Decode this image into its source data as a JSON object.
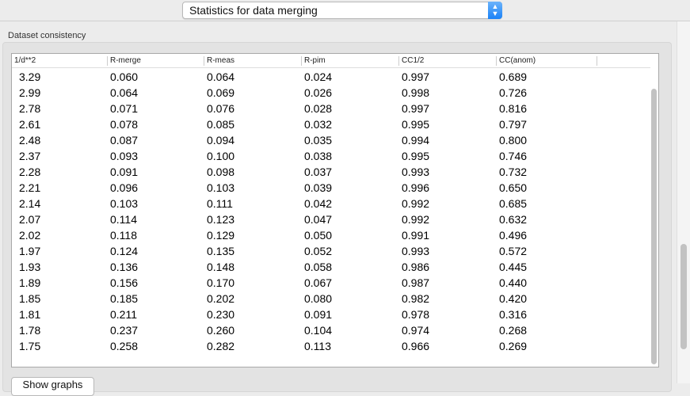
{
  "selector": {
    "value": "Statistics for data merging"
  },
  "group": {
    "label": "Dataset consistency"
  },
  "table": {
    "columns": [
      "1/d**2",
      "R-merge",
      "R-meas",
      "R-pim",
      "CC1/2",
      "CC(anom)"
    ],
    "rows": [
      [
        "3.29",
        "0.060",
        "0.064",
        "0.024",
        "0.997",
        "0.689"
      ],
      [
        "2.99",
        "0.064",
        "0.069",
        "0.026",
        "0.998",
        "0.726"
      ],
      [
        "2.78",
        "0.071",
        "0.076",
        "0.028",
        "0.997",
        "0.816"
      ],
      [
        "2.61",
        "0.078",
        "0.085",
        "0.032",
        "0.995",
        "0.797"
      ],
      [
        "2.48",
        "0.087",
        "0.094",
        "0.035",
        "0.994",
        "0.800"
      ],
      [
        "2.37",
        "0.093",
        "0.100",
        "0.038",
        "0.995",
        "0.746"
      ],
      [
        "2.28",
        "0.091",
        "0.098",
        "0.037",
        "0.993",
        "0.732"
      ],
      [
        "2.21",
        "0.096",
        "0.103",
        "0.039",
        "0.996",
        "0.650"
      ],
      [
        "2.14",
        "0.103",
        "0.111",
        "0.042",
        "0.992",
        "0.685"
      ],
      [
        "2.07",
        "0.114",
        "0.123",
        "0.047",
        "0.992",
        "0.632"
      ],
      [
        "2.02",
        "0.118",
        "0.129",
        "0.050",
        "0.991",
        "0.496"
      ],
      [
        "1.97",
        "0.124",
        "0.135",
        "0.052",
        "0.993",
        "0.572"
      ],
      [
        "1.93",
        "0.136",
        "0.148",
        "0.058",
        "0.986",
        "0.445"
      ],
      [
        "1.89",
        "0.156",
        "0.170",
        "0.067",
        "0.987",
        "0.440"
      ],
      [
        "1.85",
        "0.185",
        "0.202",
        "0.080",
        "0.982",
        "0.420"
      ],
      [
        "1.81",
        "0.211",
        "0.230",
        "0.091",
        "0.978",
        "0.316"
      ],
      [
        "1.78",
        "0.237",
        "0.260",
        "0.104",
        "0.974",
        "0.268"
      ],
      [
        "1.75",
        "0.258",
        "0.282",
        "0.113",
        "0.966",
        "0.269"
      ]
    ]
  },
  "button": {
    "label": "Show graphs"
  }
}
